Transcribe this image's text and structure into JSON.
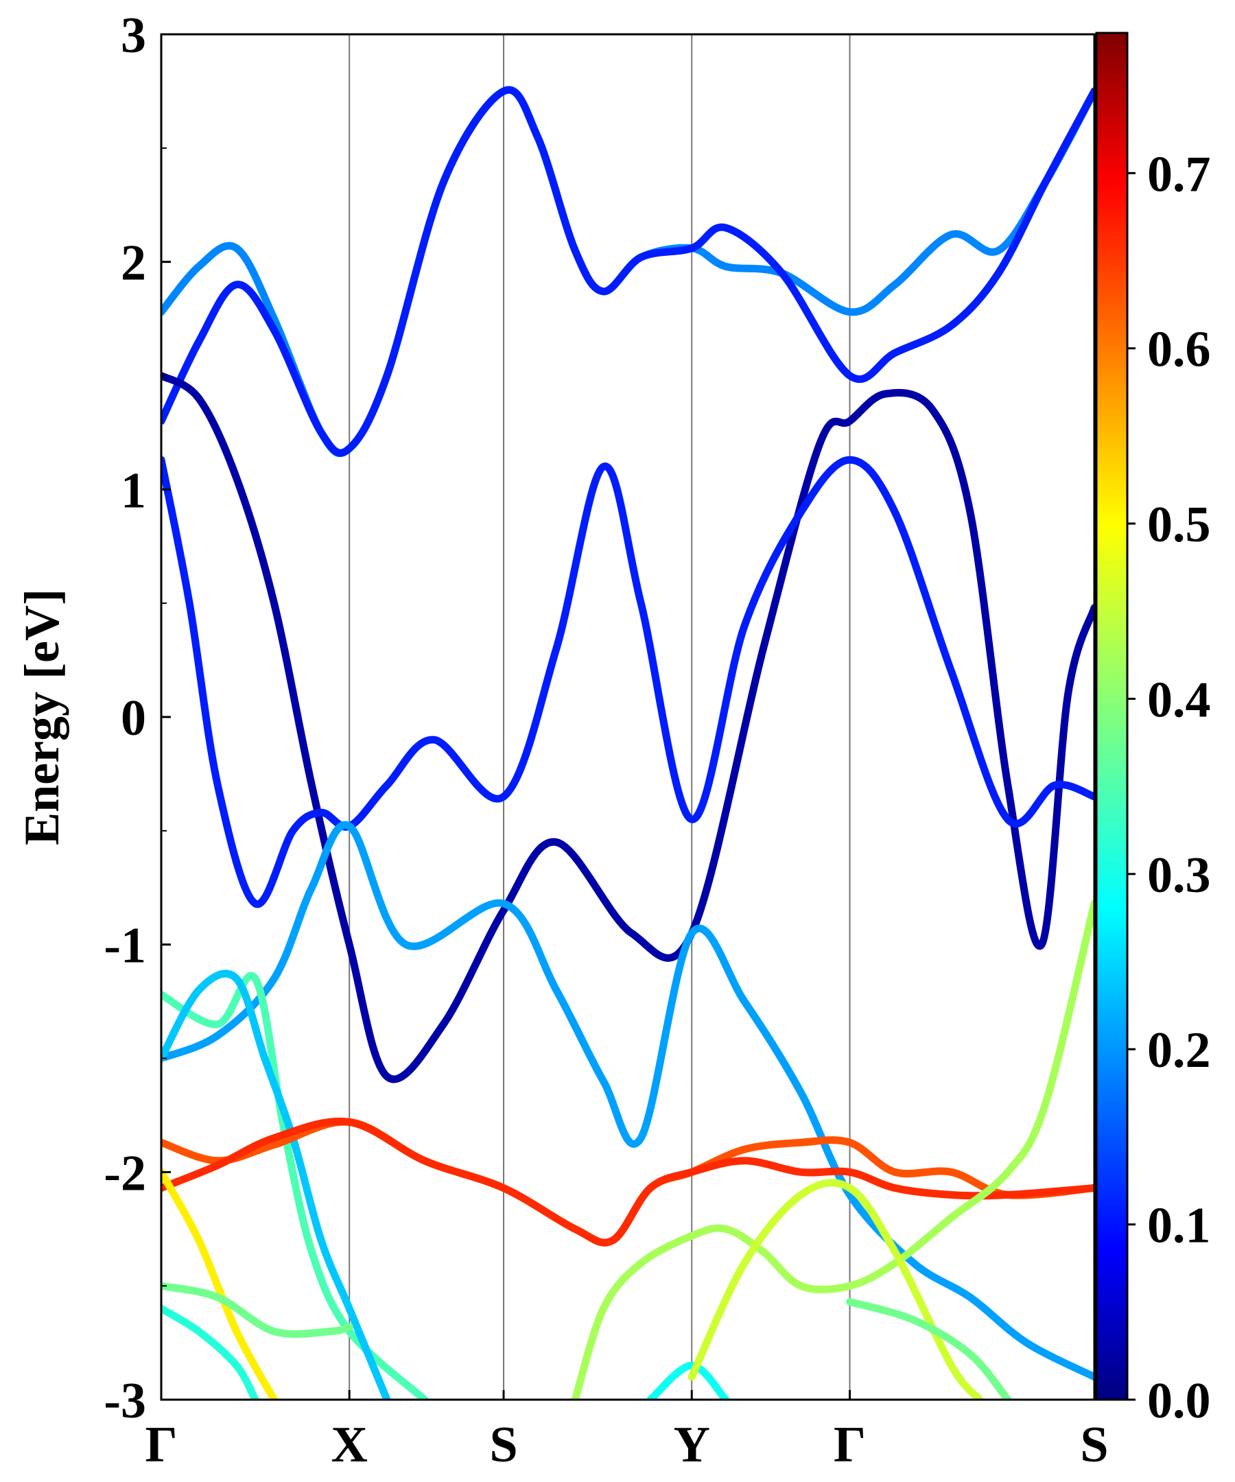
{
  "chart_data": {
    "type": "line",
    "ylabel": "Energy [eV]",
    "xlabel": "",
    "ylim": [
      -3,
      3
    ],
    "yticks": [
      3,
      2,
      1,
      0,
      -1,
      -2,
      -3
    ],
    "kpath_labels": [
      "Γ",
      "X",
      "S",
      "Y",
      "Γ",
      "S"
    ],
    "kpath_positions": [
      0,
      1,
      1.82,
      2.82,
      3.66,
      4.96
    ],
    "grid": "vertical lines at high-symmetry points",
    "colormap": "jet",
    "colorbar": {
      "min": 0.0,
      "max": 0.78,
      "ticks": [
        "0.0",
        "0.1",
        "0.2",
        "0.3",
        "0.4",
        "0.5",
        "0.6",
        "0.7"
      ],
      "tick_values": [
        0.0,
        0.1,
        0.2,
        0.3,
        0.4,
        0.5,
        0.6,
        0.7
      ]
    },
    "series": [
      {
        "c": 0.2,
        "points": [
          [
            0,
            1.78
          ],
          [
            0.2,
            1.98
          ],
          [
            0.4,
            2.06
          ],
          [
            0.6,
            1.75
          ],
          [
            0.85,
            1.25
          ],
          [
            1,
            1.18
          ],
          [
            1.2,
            1.5
          ],
          [
            1.5,
            2.35
          ],
          [
            1.82,
            2.75
          ],
          [
            2.0,
            2.55
          ],
          [
            2.2,
            2.05
          ],
          [
            2.35,
            1.87
          ],
          [
            2.55,
            2.02
          ],
          [
            2.82,
            2.06
          ],
          [
            3.0,
            1.98
          ],
          [
            3.3,
            1.95
          ],
          [
            3.66,
            1.78
          ],
          [
            3.9,
            1.9
          ],
          [
            4.2,
            2.12
          ],
          [
            4.45,
            2.05
          ],
          [
            4.7,
            2.35
          ],
          [
            4.96,
            2.75
          ]
        ]
      },
      {
        "c": 0.12,
        "points": [
          [
            0,
            1.3
          ],
          [
            0.2,
            1.65
          ],
          [
            0.4,
            1.9
          ],
          [
            0.6,
            1.7
          ],
          [
            0.85,
            1.25
          ],
          [
            1,
            1.18
          ],
          [
            1.2,
            1.5
          ],
          [
            1.5,
            2.35
          ],
          [
            1.82,
            2.75
          ],
          [
            2.0,
            2.55
          ],
          [
            2.2,
            2.05
          ],
          [
            2.35,
            1.87
          ],
          [
            2.55,
            2.02
          ],
          [
            2.82,
            2.06
          ],
          [
            3.0,
            2.15
          ],
          [
            3.3,
            1.95
          ],
          [
            3.66,
            1.5
          ],
          [
            3.9,
            1.6
          ],
          [
            4.2,
            1.72
          ],
          [
            4.45,
            1.95
          ],
          [
            4.7,
            2.35
          ],
          [
            4.96,
            2.75
          ]
        ]
      },
      {
        "c": 0.03,
        "points": [
          [
            0,
            1.5
          ],
          [
            0.2,
            1.4
          ],
          [
            0.4,
            1.05
          ],
          [
            0.6,
            0.5
          ],
          [
            0.8,
            -0.3
          ],
          [
            1,
            -1.0
          ],
          [
            1.2,
            -1.58
          ],
          [
            1.5,
            -1.35
          ],
          [
            1.82,
            -0.85
          ],
          [
            2.1,
            -0.55
          ],
          [
            2.5,
            -0.95
          ],
          [
            2.82,
            -0.95
          ],
          [
            3.2,
            0.3
          ],
          [
            3.5,
            1.2
          ],
          [
            3.66,
            1.3
          ],
          [
            3.85,
            1.42
          ],
          [
            4.1,
            1.35
          ],
          [
            4.3,
            0.9
          ],
          [
            4.5,
            -0.3
          ],
          [
            4.68,
            -1.0
          ],
          [
            4.82,
            0.1
          ],
          [
            4.96,
            0.48
          ]
        ]
      },
      {
        "c": 0.12,
        "points": [
          [
            0,
            1.13
          ],
          [
            0.15,
            0.5
          ],
          [
            0.3,
            -0.3
          ],
          [
            0.5,
            -0.82
          ],
          [
            0.7,
            -0.5
          ],
          [
            0.85,
            -0.42
          ],
          [
            1,
            -0.48
          ],
          [
            1.2,
            -0.3
          ],
          [
            1.45,
            -0.1
          ],
          [
            1.82,
            -0.35
          ],
          [
            2.1,
            0.3
          ],
          [
            2.35,
            1.1
          ],
          [
            2.55,
            0.5
          ],
          [
            2.82,
            -0.45
          ],
          [
            3.1,
            0.4
          ],
          [
            3.4,
            0.9
          ],
          [
            3.66,
            1.13
          ],
          [
            3.9,
            0.9
          ],
          [
            4.2,
            0.2
          ],
          [
            4.5,
            -0.45
          ],
          [
            4.75,
            -0.3
          ],
          [
            4.96,
            -0.35
          ]
        ]
      },
      {
        "c": 0.22,
        "points": [
          [
            0,
            -1.5
          ],
          [
            0.3,
            -1.4
          ],
          [
            0.6,
            -1.15
          ],
          [
            0.8,
            -0.75
          ],
          [
            1,
            -0.48
          ],
          [
            1.3,
            -1.0
          ],
          [
            1.82,
            -0.82
          ],
          [
            2.1,
            -1.2
          ],
          [
            2.35,
            -1.6
          ],
          [
            2.55,
            -1.85
          ],
          [
            2.82,
            -0.95
          ],
          [
            3.1,
            -1.25
          ],
          [
            3.4,
            -1.65
          ],
          [
            3.66,
            -2.1
          ],
          [
            4.0,
            -2.4
          ],
          [
            4.3,
            -2.55
          ],
          [
            4.6,
            -2.75
          ],
          [
            4.96,
            -2.9
          ]
        ]
      },
      {
        "c": 0.35,
        "points": [
          [
            0,
            -1.22
          ],
          [
            0.3,
            -1.35
          ],
          [
            0.5,
            -1.15
          ],
          [
            0.65,
            -1.8
          ],
          [
            0.8,
            -2.35
          ],
          [
            1,
            -2.7
          ],
          [
            1.4,
            -3.0
          ]
        ]
      },
      {
        "c": 0.25,
        "points": [
          [
            0,
            -1.5
          ],
          [
            0.2,
            -1.2
          ],
          [
            0.4,
            -1.15
          ],
          [
            0.55,
            -1.5
          ],
          [
            0.7,
            -1.85
          ],
          [
            0.85,
            -2.3
          ],
          [
            1.0,
            -2.6
          ],
          [
            1.2,
            -3.0
          ]
        ]
      },
      {
        "c": 0.62,
        "points": [
          [
            0,
            -1.87
          ],
          [
            0.3,
            -1.95
          ],
          [
            0.6,
            -1.88
          ],
          [
            1,
            -1.78
          ],
          [
            1.4,
            -1.95
          ],
          [
            1.82,
            -2.07
          ],
          [
            2.2,
            -2.25
          ],
          [
            2.4,
            -2.3
          ],
          [
            2.6,
            -2.07
          ],
          [
            2.82,
            -2.0
          ],
          [
            3.1,
            -1.9
          ],
          [
            3.4,
            -1.87
          ],
          [
            3.66,
            -1.87
          ],
          [
            3.9,
            -2.0
          ],
          [
            4.2,
            -2.0
          ],
          [
            4.5,
            -2.1
          ],
          [
            4.96,
            -2.07
          ]
        ]
      },
      {
        "c": 0.65,
        "points": [
          [
            0,
            -2.07
          ],
          [
            0.3,
            -1.97
          ],
          [
            0.6,
            -1.85
          ],
          [
            1,
            -1.78
          ],
          [
            1.4,
            -1.95
          ],
          [
            1.82,
            -2.07
          ],
          [
            2.2,
            -2.25
          ],
          [
            2.4,
            -2.3
          ],
          [
            2.6,
            -2.07
          ],
          [
            2.82,
            -2.0
          ],
          [
            3.1,
            -1.95
          ],
          [
            3.4,
            -2.0
          ],
          [
            3.66,
            -2.0
          ],
          [
            3.9,
            -2.07
          ],
          [
            4.2,
            -2.1
          ],
          [
            4.5,
            -2.1
          ],
          [
            4.96,
            -2.07
          ]
        ]
      },
      {
        "c": 0.5,
        "points": [
          [
            0,
            -2.0
          ],
          [
            0.2,
            -2.3
          ],
          [
            0.4,
            -2.7
          ],
          [
            0.6,
            -3.0
          ]
        ]
      },
      {
        "c": 0.38,
        "points": [
          [
            0,
            -2.5
          ],
          [
            0.3,
            -2.55
          ],
          [
            0.6,
            -2.7
          ],
          [
            0.9,
            -2.7
          ],
          [
            1.0,
            -2.68
          ]
        ]
      },
      {
        "c": 0.32,
        "points": [
          [
            0,
            -2.6
          ],
          [
            0.2,
            -2.7
          ],
          [
            0.4,
            -2.85
          ],
          [
            0.5,
            -3.0
          ]
        ]
      },
      {
        "c": 0.42,
        "points": [
          [
            2.2,
            -3.0
          ],
          [
            2.35,
            -2.6
          ],
          [
            2.55,
            -2.4
          ],
          [
            2.82,
            -2.28
          ],
          [
            3.0,
            -2.25
          ],
          [
            3.2,
            -2.35
          ],
          [
            3.4,
            -2.5
          ],
          [
            3.66,
            -2.5
          ],
          [
            3.9,
            -2.4
          ],
          [
            4.2,
            -2.2
          ],
          [
            4.5,
            -2.0
          ],
          [
            4.7,
            -1.7
          ],
          [
            4.96,
            -0.82
          ]
        ]
      },
      {
        "c": 0.3,
        "points": [
          [
            2.6,
            -3.0
          ],
          [
            2.82,
            -2.85
          ],
          [
            3.0,
            -3.0
          ]
        ]
      },
      {
        "c": 0.45,
        "points": [
          [
            2.82,
            -2.9
          ],
          [
            3.1,
            -2.4
          ],
          [
            3.4,
            -2.1
          ],
          [
            3.66,
            -2.07
          ],
          [
            3.9,
            -2.35
          ],
          [
            4.2,
            -2.85
          ],
          [
            4.35,
            -3.0
          ]
        ]
      },
      {
        "c": 0.38,
        "points": [
          [
            3.66,
            -2.57
          ],
          [
            4.0,
            -2.65
          ],
          [
            4.3,
            -2.8
          ],
          [
            4.5,
            -3.0
          ]
        ]
      }
    ]
  }
}
